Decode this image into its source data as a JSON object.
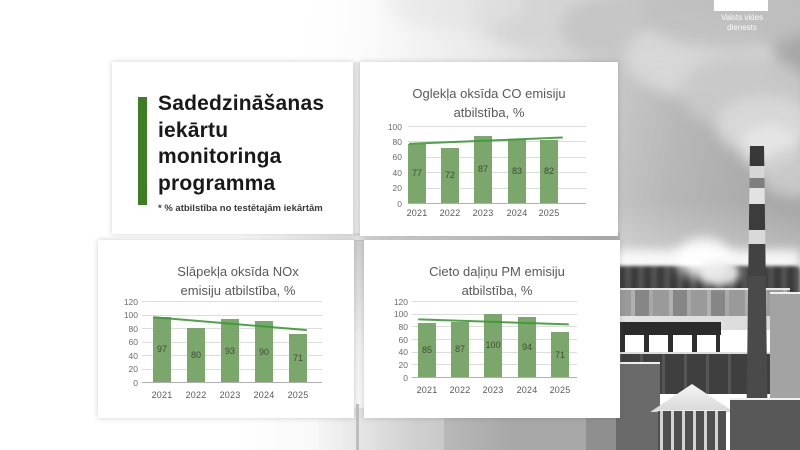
{
  "logo": {
    "name": "Valsts vides dienests",
    "line1": "Valsts vides",
    "line2": "dienests"
  },
  "intro": {
    "title_lines": [
      "Sadedzināšanas",
      "iekārtu",
      "monitoringa",
      "programma"
    ],
    "footnote": "* % atbilstība no testētajām iekārtām"
  },
  "colors": {
    "accent_green": "#3E7D23",
    "bar_green": "#7CA76C",
    "trend_green": "#3C9A35",
    "chart_text_gray": "#595959"
  },
  "chart_data": [
    {
      "type": "bar",
      "title_lines": [
        "Oglekļa oksīda CO emisiju",
        "atbilstība, %"
      ],
      "categories": [
        "2021",
        "2022",
        "2023",
        "2024",
        "2025"
      ],
      "values": [
        77,
        72,
        87,
        83,
        82
      ],
      "ylim": [
        0,
        100
      ],
      "yticks": [
        0,
        20,
        40,
        60,
        80,
        100
      ],
      "trend": {
        "start": 77,
        "end": 85
      },
      "grid": true,
      "legend": "none"
    },
    {
      "type": "bar",
      "title_lines": [
        "Slāpekļa oksīda NOx",
        "emisiju atbilstība, %"
      ],
      "categories": [
        "2021",
        "2022",
        "2023",
        "2024",
        "2025"
      ],
      "values": [
        97,
        80,
        93,
        90,
        71
      ],
      "ylim": [
        0,
        120
      ],
      "yticks": [
        0,
        20,
        40,
        60,
        80,
        100,
        120
      ],
      "trend": {
        "start": 96,
        "end": 77
      },
      "grid": true,
      "legend": "none"
    },
    {
      "type": "bar",
      "title_lines": [
        "Cieto daļiņu PM emisiju",
        "atbilstība, %"
      ],
      "categories": [
        "2021",
        "2022",
        "2023",
        "2024",
        "2025"
      ],
      "values": [
        85,
        87,
        100,
        94,
        71
      ],
      "ylim": [
        0,
        120
      ],
      "yticks": [
        0,
        20,
        40,
        60,
        80,
        100,
        120
      ],
      "trend": {
        "start": 91,
        "end": 83
      },
      "grid": true,
      "legend": "none"
    }
  ]
}
